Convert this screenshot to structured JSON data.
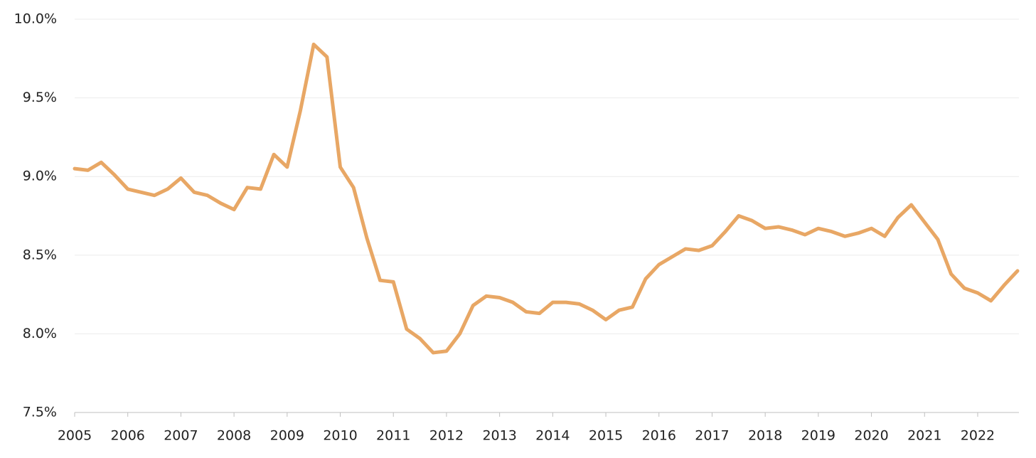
{
  "chart_data": {
    "type": "line",
    "x": [
      2005,
      2005.25,
      2005.5,
      2005.75,
      2006,
      2006.25,
      2006.5,
      2006.75,
      2007,
      2007.25,
      2007.5,
      2007.75,
      2008,
      2008.25,
      2008.5,
      2008.75,
      2009,
      2009.25,
      2009.5,
      2009.75,
      2010,
      2010.25,
      2010.5,
      2010.75,
      2011,
      2011.25,
      2011.5,
      2011.75,
      2012,
      2012.25,
      2012.5,
      2012.75,
      2013,
      2013.25,
      2013.5,
      2013.75,
      2014,
      2014.25,
      2014.5,
      2014.75,
      2015,
      2015.25,
      2015.5,
      2015.75,
      2016,
      2016.25,
      2016.5,
      2016.75,
      2017,
      2017.25,
      2017.5,
      2017.75,
      2018,
      2018.25,
      2018.5,
      2018.75,
      2019,
      2019.25,
      2019.5,
      2019.75,
      2020,
      2020.25,
      2020.5,
      2020.75,
      2021,
      2021.25,
      2021.5,
      2021.75,
      2022,
      2022.25,
      2022.5,
      2022.75
    ],
    "values": [
      9.05,
      9.04,
      9.09,
      9.01,
      8.92,
      8.9,
      8.88,
      8.92,
      8.99,
      8.9,
      8.88,
      8.83,
      8.79,
      8.93,
      8.92,
      9.14,
      9.06,
      9.42,
      9.84,
      9.76,
      9.06,
      8.93,
      8.61,
      8.34,
      8.33,
      8.03,
      7.97,
      7.88,
      7.89,
      8.0,
      8.18,
      8.24,
      8.23,
      8.2,
      8.14,
      8.13,
      8.2,
      8.2,
      8.19,
      8.15,
      8.09,
      8.15,
      8.17,
      8.35,
      8.44,
      8.49,
      8.54,
      8.53,
      8.56,
      8.65,
      8.75,
      8.72,
      8.67,
      8.68,
      8.66,
      8.63,
      8.67,
      8.65,
      8.62,
      8.64,
      8.67,
      8.62,
      8.74,
      8.82,
      8.71,
      8.6,
      8.38,
      8.29,
      8.26,
      8.21,
      8.31,
      8.4
    ],
    "color": "#e8a765",
    "xlim": [
      2005,
      2022.75
    ],
    "xticks": [
      2005,
      2006,
      2007,
      2008,
      2009,
      2010,
      2011,
      2012,
      2013,
      2014,
      2015,
      2016,
      2017,
      2018,
      2019,
      2020,
      2021,
      2022
    ],
    "ylim": [
      7.5,
      10
    ],
    "yticks": [
      {
        "value": 7.5,
        "label": "7.5%"
      },
      {
        "value": 8,
        "label": "8.0%"
      },
      {
        "value": 8.5,
        "label": "8.5%"
      },
      {
        "value": 9,
        "label": "9.0%"
      },
      {
        "value": 9.5,
        "label": "9.5%"
      },
      {
        "value": 10,
        "label": "10.0%"
      }
    ],
    "grid": true
  }
}
